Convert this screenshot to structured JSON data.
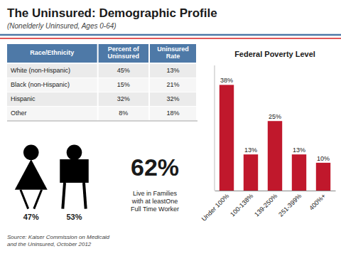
{
  "chart_data": [
    {
      "type": "table",
      "title": "The Uninsured: Demographic Profile",
      "subtitle": "(Nonelderly Uninsured, Ages 0-64)",
      "header": [
        "Race/Ethnicity",
        "Percent of\nUninsured",
        "Uninsured\nRate"
      ],
      "rows": [
        [
          "White (non-Hispanic)",
          "45%",
          "13%"
        ],
        [
          "Black (non-Hispanic)",
          "15%",
          "21%"
        ],
        [
          "Hispanic",
          "32%",
          "32%"
        ],
        [
          "Other",
          "8%",
          "18%"
        ]
      ],
      "source": "Source: Kaiser Commission on Medicaid\nand the Uninsured, October 2012"
    },
    {
      "type": "pictogram",
      "series": [
        {
          "marker": "female",
          "values": [
            47
          ],
          "value_labels": [
            "47%"
          ]
        },
        {
          "marker": "male",
          "values": [
            53
          ],
          "value_labels": [
            "53%"
          ]
        }
      ]
    },
    {
      "type": "stat",
      "values": [
        62
      ],
      "value_labels": [
        "62%"
      ],
      "annotation": "Live in Families\nwith at leastOne\nFull Time Worker"
    },
    {
      "type": "bar",
      "title": "Federal Poverty Level",
      "categories": [
        "Under 100%",
        "100-138%",
        "139-250%",
        "251-399%",
        "400%+"
      ],
      "values": [
        38,
        13,
        25,
        13,
        10
      ],
      "value_labels": [
        "38%",
        "13%",
        "25%",
        "13%",
        "10%"
      ],
      "color": "#c0182c",
      "ylim": [
        0,
        45
      ],
      "data_labels": true,
      "tick_labels": "x"
    }
  ]
}
